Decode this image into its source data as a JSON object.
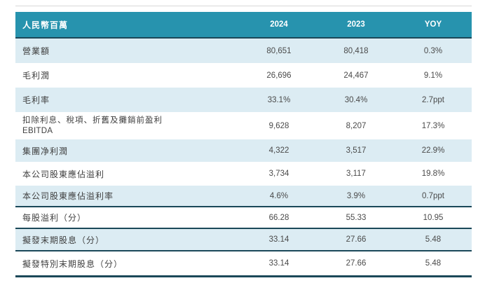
{
  "table": {
    "header": {
      "label": "人民幣百萬",
      "col2024": "2024",
      "col2023": "2023",
      "yoy": "YOY"
    },
    "rows": [
      {
        "label": "營業額",
        "v2024": "80,651",
        "v2023": "80,418",
        "yoy": "0.3%"
      },
      {
        "label": "毛利潤",
        "v2024": "26,696",
        "v2023": "24,467",
        "yoy": "9.1%"
      },
      {
        "label": "毛利率",
        "v2024": "33.1%",
        "v2023": "30.4%",
        "yoy": "2.7ppt"
      },
      {
        "label": "扣除利息、稅項、折舊及攤銷前盈利",
        "label_line2": "EBITDA",
        "v2024": "9,628",
        "v2023": "8,207",
        "yoy": "17.3%"
      },
      {
        "label": "集團净利潤",
        "v2024": "4,322",
        "v2023": "3,517",
        "yoy": "22.9%"
      },
      {
        "label": "本公司股東應佔溢利",
        "v2024": "3,734",
        "v2023": "3,117",
        "yoy": "19.8%"
      },
      {
        "label": "本公司股東應佔溢利率",
        "v2024": "4.6%",
        "v2023": "3.9%",
        "yoy": "0.7ppt"
      },
      {
        "label": "每股溢利（分）",
        "v2024": "66.28",
        "v2023": "55.33",
        "yoy": "10.95"
      },
      {
        "label": "擬發末期股息（分）",
        "v2024": "33.14",
        "v2023": "27.66",
        "yoy": "5.48"
      },
      {
        "label": "擬發特別末期股息（分）",
        "v2024": "33.14",
        "v2023": "27.66",
        "yoy": "5.48"
      }
    ],
    "colors": {
      "header_bg": "#2793ae",
      "alt_row_bg": "#dcecf3",
      "rule": "#1b4859",
      "body_text": "#404040",
      "header_text": "#ffffff"
    }
  }
}
